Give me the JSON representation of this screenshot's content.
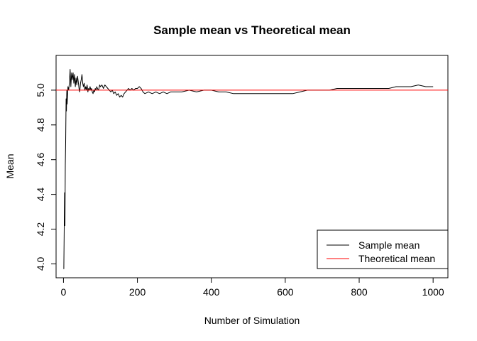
{
  "chart_data": {
    "type": "line",
    "title": "Sample mean vs Theoretical mean",
    "xlabel": "Number of Simulation",
    "ylabel": "Mean",
    "xlim": [
      -20,
      1040
    ],
    "ylim": [
      3.92,
      5.2
    ],
    "x_ticks": [
      0,
      200,
      400,
      600,
      800,
      1000
    ],
    "x_tick_labels": [
      "0",
      "200",
      "400",
      "600",
      "800",
      "1000"
    ],
    "y_ticks": [
      4.0,
      4.2,
      4.4,
      4.6,
      4.8,
      5.0
    ],
    "y_tick_labels": [
      "4.0",
      "4.2",
      "4.4",
      "4.6",
      "4.8",
      "5.0"
    ],
    "grid": false,
    "legend_position": "bottom-right",
    "series": [
      {
        "name": "Sample mean",
        "color": "#000000",
        "points": [
          [
            1,
            3.97
          ],
          [
            2,
            4.22
          ],
          [
            3,
            4.41
          ],
          [
            4,
            4.22
          ],
          [
            5,
            4.57
          ],
          [
            6,
            4.7
          ],
          [
            7,
            4.95
          ],
          [
            8,
            4.88
          ],
          [
            9,
            5.0
          ],
          [
            10,
            4.92
          ],
          [
            12,
            5.02
          ],
          [
            14,
            5.0
          ],
          [
            16,
            5.04
          ],
          [
            18,
            5.12
          ],
          [
            20,
            5.02
          ],
          [
            22,
            5.1
          ],
          [
            24,
            5.06
          ],
          [
            26,
            5.1
          ],
          [
            28,
            5.04
          ],
          [
            30,
            5.09
          ],
          [
            32,
            5.02
          ],
          [
            34,
            5.07
          ],
          [
            36,
            5.03
          ],
          [
            38,
            5.08
          ],
          [
            40,
            5.05
          ],
          [
            42,
            5.01
          ],
          [
            44,
            4.99
          ],
          [
            46,
            5.04
          ],
          [
            48,
            5.06
          ],
          [
            50,
            5.09
          ],
          [
            52,
            5.04
          ],
          [
            54,
            5.02
          ],
          [
            56,
            5.04
          ],
          [
            58,
            5.0
          ],
          [
            60,
            5.02
          ],
          [
            62,
            5.0
          ],
          [
            64,
            5.03
          ],
          [
            66,
            4.99
          ],
          [
            68,
            5.01
          ],
          [
            70,
            5.0
          ],
          [
            72,
            5.02
          ],
          [
            74,
            5.0
          ],
          [
            76,
            5.01
          ],
          [
            78,
            4.99
          ],
          [
            80,
            4.98
          ],
          [
            82,
            5.0
          ],
          [
            84,
            4.99
          ],
          [
            86,
            5.01
          ],
          [
            88,
            5.0
          ],
          [
            90,
            5.02
          ],
          [
            92,
            5.01
          ],
          [
            94,
            5.0
          ],
          [
            96,
            5.01
          ],
          [
            98,
            5.03
          ],
          [
            100,
            5.02
          ],
          [
            104,
            5.03
          ],
          [
            108,
            5.01
          ],
          [
            112,
            5.03
          ],
          [
            116,
            5.02
          ],
          [
            120,
            5.01
          ],
          [
            124,
            5.0
          ],
          [
            128,
            4.99
          ],
          [
            132,
            5.0
          ],
          [
            136,
            4.98
          ],
          [
            140,
            4.99
          ],
          [
            144,
            4.97
          ],
          [
            148,
            4.98
          ],
          [
            152,
            4.96
          ],
          [
            156,
            4.97
          ],
          [
            160,
            4.96
          ],
          [
            164,
            4.98
          ],
          [
            168,
            4.99
          ],
          [
            172,
            5.0
          ],
          [
            176,
            5.01
          ],
          [
            180,
            5.0
          ],
          [
            185,
            5.01
          ],
          [
            190,
            5.0
          ],
          [
            195,
            5.01
          ],
          [
            200,
            5.01
          ],
          [
            205,
            5.02
          ],
          [
            210,
            5.01
          ],
          [
            215,
            4.99
          ],
          [
            220,
            4.98
          ],
          [
            230,
            4.99
          ],
          [
            240,
            4.98
          ],
          [
            250,
            4.99
          ],
          [
            260,
            4.98
          ],
          [
            270,
            4.99
          ],
          [
            280,
            4.98
          ],
          [
            290,
            4.99
          ],
          [
            300,
            4.99
          ],
          [
            320,
            4.99
          ],
          [
            340,
            5.0
          ],
          [
            360,
            4.99
          ],
          [
            380,
            5.0
          ],
          [
            400,
            5.0
          ],
          [
            420,
            4.99
          ],
          [
            440,
            4.99
          ],
          [
            460,
            4.98
          ],
          [
            480,
            4.98
          ],
          [
            500,
            4.98
          ],
          [
            520,
            4.98
          ],
          [
            540,
            4.98
          ],
          [
            560,
            4.98
          ],
          [
            580,
            4.98
          ],
          [
            600,
            4.98
          ],
          [
            620,
            4.98
          ],
          [
            640,
            4.99
          ],
          [
            660,
            5.0
          ],
          [
            680,
            5.0
          ],
          [
            700,
            5.0
          ],
          [
            720,
            5.0
          ],
          [
            740,
            5.01
          ],
          [
            760,
            5.01
          ],
          [
            780,
            5.01
          ],
          [
            800,
            5.01
          ],
          [
            820,
            5.01
          ],
          [
            840,
            5.01
          ],
          [
            860,
            5.01
          ],
          [
            880,
            5.01
          ],
          [
            900,
            5.02
          ],
          [
            920,
            5.02
          ],
          [
            940,
            5.02
          ],
          [
            960,
            5.03
          ],
          [
            980,
            5.02
          ],
          [
            1000,
            5.02
          ]
        ]
      },
      {
        "name": "Theoretical mean",
        "color": "#ff0000",
        "value": 5.0
      }
    ]
  }
}
